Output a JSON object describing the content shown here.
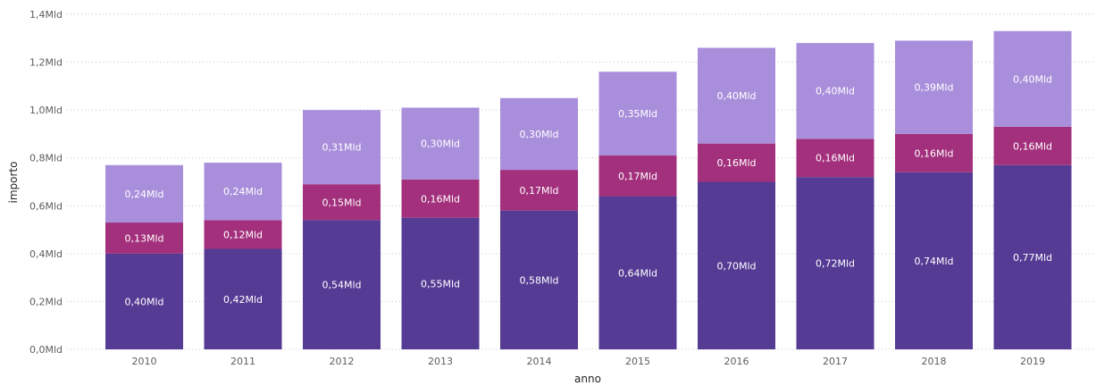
{
  "chart_data": {
    "type": "bar",
    "stacked": true,
    "xlabel": "anno",
    "ylabel": "importo",
    "ylim": [
      0,
      1.4
    ],
    "yticks": [
      0.0,
      0.2,
      0.4,
      0.6,
      0.8,
      1.0,
      1.2,
      1.4
    ],
    "ytick_labels": [
      "0,0Mld",
      "0,2Mld",
      "0,4Mld",
      "0,6Mld",
      "0,8Mld",
      "1,0Mld",
      "1,2Mld",
      "1,4Mld"
    ],
    "categories": [
      "2010",
      "2011",
      "2012",
      "2013",
      "2014",
      "2015",
      "2016",
      "2017",
      "2018",
      "2019"
    ],
    "grid": true,
    "series": [
      {
        "color": "#553b94",
        "values": [
          0.4,
          0.42,
          0.54,
          0.55,
          0.58,
          0.64,
          0.7,
          0.72,
          0.74,
          0.77
        ],
        "labels": [
          "0,40Mld",
          "0,42Mld",
          "0,54Mld",
          "0,55Mld",
          "0,58Mld",
          "0,64Mld",
          "0,70Mld",
          "0,72Mld",
          "0,74Mld",
          "0,77Mld"
        ]
      },
      {
        "color": "#a3307c",
        "values": [
          0.13,
          0.12,
          0.15,
          0.16,
          0.17,
          0.17,
          0.16,
          0.16,
          0.16,
          0.16
        ],
        "labels": [
          "0,13Mld",
          "0,12Mld",
          "0,15Mld",
          "0,16Mld",
          "0,17Mld",
          "0,17Mld",
          "0,16Mld",
          "0,16Mld",
          "0,16Mld",
          "0,16Mld"
        ]
      },
      {
        "color": "#a98fdb",
        "values": [
          0.24,
          0.24,
          0.31,
          0.3,
          0.3,
          0.35,
          0.4,
          0.4,
          0.39,
          0.4
        ],
        "labels": [
          "0,24Mld",
          "0,24Mld",
          "0,31Mld",
          "0,30Mld",
          "0,30Mld",
          "0,35Mld",
          "0,40Mld",
          "0,40Mld",
          "0,39Mld",
          "0,40Mld"
        ]
      }
    ]
  }
}
